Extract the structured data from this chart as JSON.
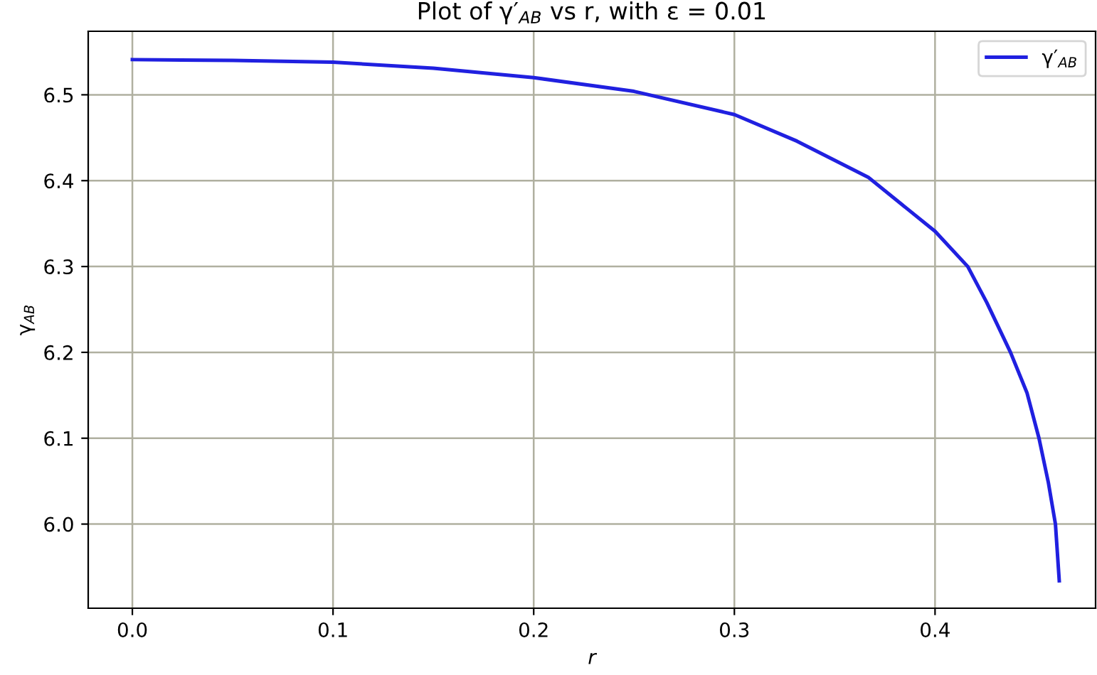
{
  "chart_data": {
    "type": "line",
    "title": "Plot of γ′$_{AB}$ vs r, with ε = 0.01",
    "xlabel": "r",
    "ylabel": "γ$_{AB}$",
    "series": [
      {
        "name": "γ′$_{AB}$",
        "color": "#2020e0",
        "x": [
          0.0,
          0.05,
          0.1,
          0.15,
          0.2,
          0.25,
          0.3,
          0.3312,
          0.3667,
          0.4,
          0.4163,
          0.4258,
          0.4376,
          0.4458,
          0.4518,
          0.4565,
          0.46,
          0.4619
        ],
        "values": [
          6.541,
          6.54,
          6.538,
          6.531,
          6.52,
          6.504,
          6.477,
          6.446,
          6.404,
          6.341,
          6.3,
          6.258,
          6.2,
          6.153,
          6.1,
          6.048,
          6.0,
          5.934
        ]
      }
    ],
    "xlim": [
      -0.022,
      0.48
    ],
    "ylim": [
      5.902,
      6.574
    ],
    "xticks": [
      {
        "value": 0.0,
        "label": "0.0"
      },
      0.1,
      0.2,
      0.3,
      0.4
    ],
    "yticks": [
      {
        "value": 6.0,
        "label": "6.0"
      },
      6.1,
      6.2,
      6.3,
      6.4,
      6.5
    ],
    "grid": true,
    "legend": "top right",
    "line_style": "solid",
    "marker": "none"
  }
}
